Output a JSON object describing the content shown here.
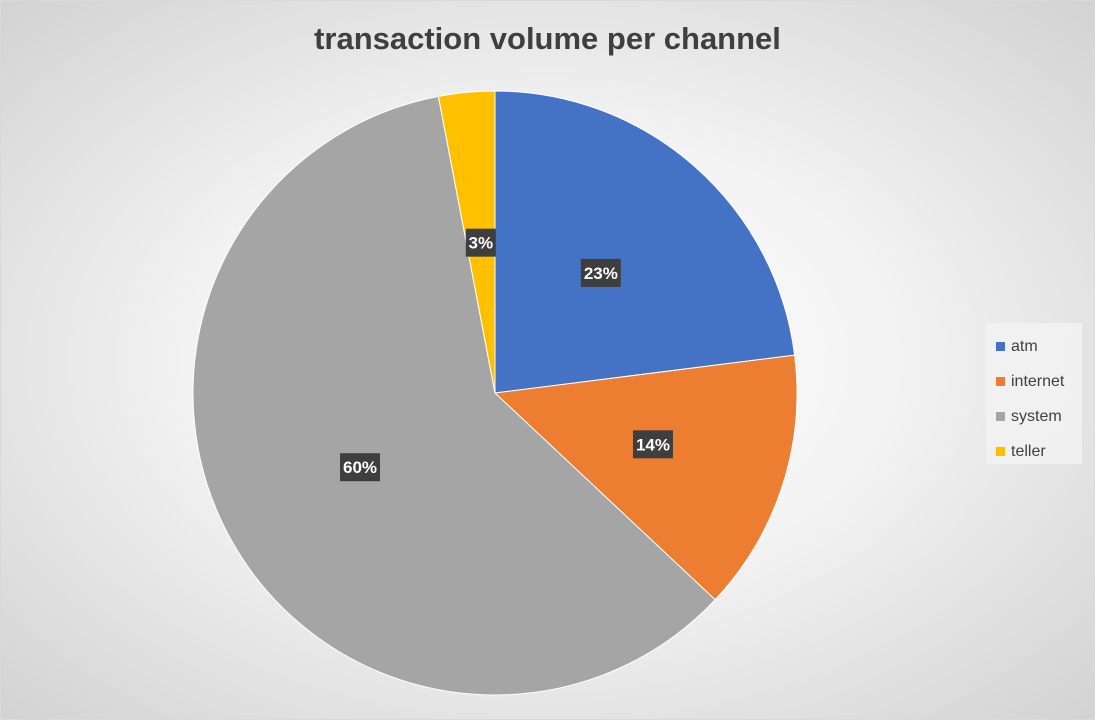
{
  "chart_data": {
    "type": "pie",
    "title": "transaction volume per channel",
    "categories": [
      "atm",
      "internet",
      "system",
      "teller"
    ],
    "values": [
      23,
      14,
      60,
      3
    ],
    "data_labels": [
      "23%",
      "14%",
      "60%",
      "3%"
    ],
    "colors": [
      "#4472C4",
      "#ED7D31",
      "#A5A5A5",
      "#FFC000"
    ],
    "legend_position": "right"
  }
}
